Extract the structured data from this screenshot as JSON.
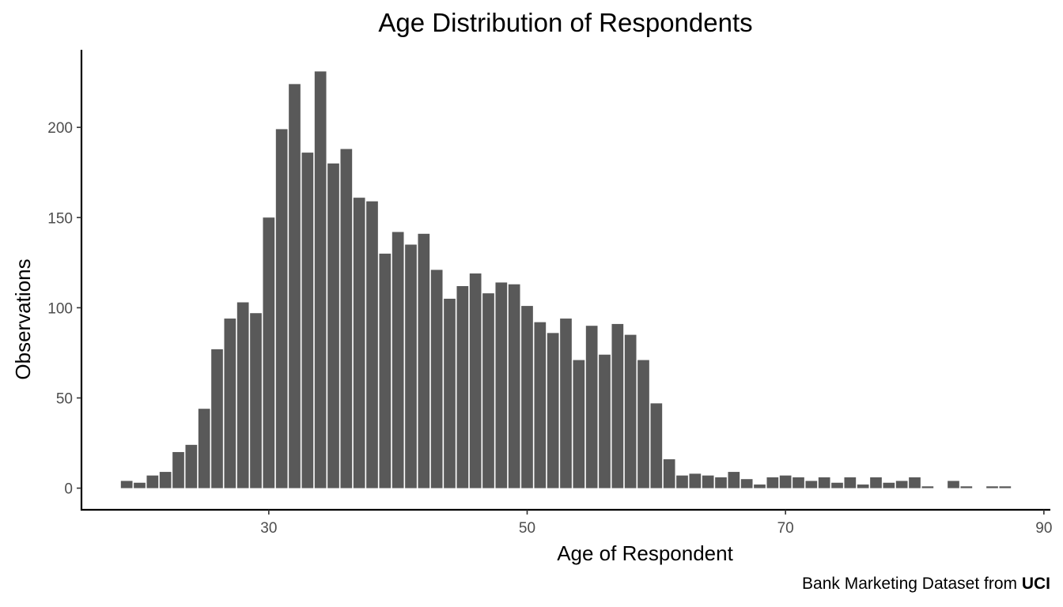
{
  "chart_data": {
    "type": "bar",
    "title": "Age Distribution of Respondents",
    "xlabel": "Age of Respondent",
    "ylabel": "Observations",
    "caption_prefix": "Bank Marketing Dataset from ",
    "caption_bold": "UCI",
    "xlim": [
      15.5,
      90.5
    ],
    "ylim": [
      -12,
      243
    ],
    "x_ticks": [
      30,
      50,
      70,
      90
    ],
    "y_ticks": [
      0,
      50,
      100,
      150,
      200
    ],
    "bar_color": "#595959",
    "grid": false,
    "x": [
      19,
      20,
      21,
      22,
      23,
      24,
      25,
      26,
      27,
      28,
      29,
      30,
      31,
      32,
      33,
      34,
      35,
      36,
      37,
      38,
      39,
      40,
      41,
      42,
      43,
      44,
      45,
      46,
      47,
      48,
      49,
      50,
      51,
      52,
      53,
      54,
      55,
      56,
      57,
      58,
      59,
      60,
      61,
      62,
      63,
      64,
      65,
      66,
      67,
      68,
      69,
      70,
      71,
      72,
      73,
      74,
      75,
      76,
      77,
      78,
      79,
      80,
      81,
      83,
      84,
      86,
      87
    ],
    "values": [
      4,
      3,
      7,
      9,
      20,
      24,
      44,
      77,
      94,
      103,
      97,
      150,
      199,
      224,
      186,
      231,
      180,
      188,
      161,
      159,
      130,
      142,
      135,
      141,
      121,
      105,
      112,
      119,
      108,
      114,
      113,
      101,
      92,
      86,
      94,
      71,
      90,
      74,
      91,
      85,
      71,
      47,
      16,
      7,
      8,
      7,
      6,
      9,
      5,
      2,
      6,
      7,
      6,
      4,
      6,
      3,
      6,
      2,
      6,
      3,
      4,
      6,
      1,
      4,
      1,
      1,
      1
    ]
  }
}
